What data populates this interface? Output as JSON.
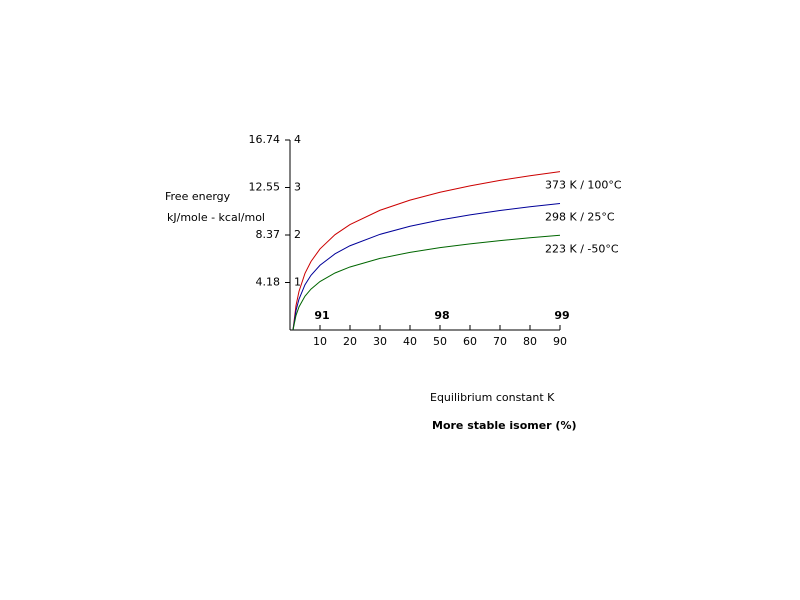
{
  "chart_data": {
    "type": "line",
    "y_label_1": "Free energy",
    "y_label_2": "kJ/mole - kcal/mol",
    "x_label": "Equilibrium constant K",
    "x2_label": "More stable isomer (%)",
    "x": [
      1,
      2,
      3,
      5,
      7,
      10,
      15,
      20,
      30,
      40,
      50,
      60,
      70,
      80,
      90
    ],
    "series": [
      {
        "name": "373 K / 100°C",
        "color": "#cc0000",
        "values": [
          0,
          0.514,
          0.814,
          1.193,
          1.442,
          1.707,
          2.007,
          2.22,
          2.521,
          2.734,
          2.9,
          3.035,
          3.149,
          3.248,
          3.335
        ]
      },
      {
        "name": "298 K / 25°C",
        "color": "#000099",
        "values": [
          0,
          0.41,
          0.65,
          0.953,
          1.152,
          1.363,
          1.603,
          1.774,
          2.014,
          2.184,
          2.316,
          2.424,
          2.516,
          2.595,
          2.664
        ]
      },
      {
        "name": "223 K / -50°C",
        "color": "#006600",
        "values": [
          0,
          0.307,
          0.487,
          0.713,
          0.862,
          1.02,
          1.2,
          1.327,
          1.507,
          1.635,
          1.733,
          1.814,
          1.882,
          1.942,
          1.994
        ]
      }
    ],
    "xlim": [
      0,
      90
    ],
    "xticks": [
      10,
      20,
      30,
      40,
      50,
      60,
      70,
      80,
      90
    ],
    "ylim": [
      0,
      4
    ],
    "yticks": [
      1,
      2,
      3,
      4
    ],
    "y_kj_ticks": [
      {
        "value": 1,
        "label": "4.18"
      },
      {
        "value": 2,
        "label": "8.37"
      },
      {
        "value": 3,
        "label": "12.55"
      },
      {
        "value": 4,
        "label": "16.74"
      }
    ],
    "percent_ticks": [
      {
        "value": 10,
        "label": "91"
      },
      {
        "value": 50,
        "label": "98"
      },
      {
        "value": 90,
        "label": "99"
      }
    ]
  }
}
